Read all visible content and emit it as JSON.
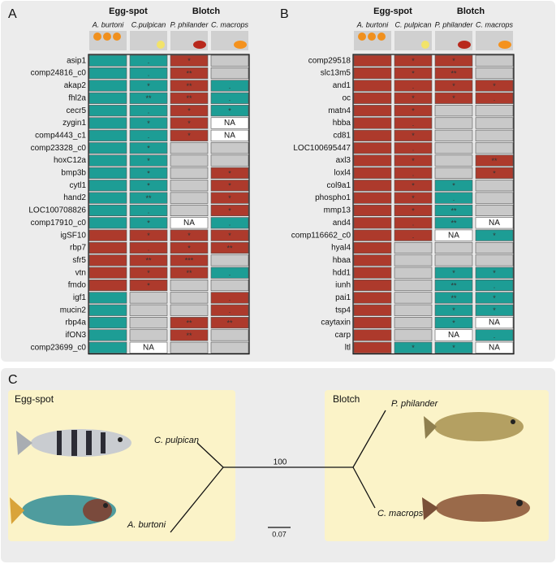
{
  "palette": {
    "r": "#ad3a2c",
    "t": "#1d9d95",
    "g": "#c9c9c9",
    "w": "#ffffff"
  },
  "panels": [
    {
      "label": "A",
      "groups": [
        "Egg-spot",
        "Blotch"
      ],
      "species": [
        "A. burtoni",
        "C.pulpican",
        "P. philander",
        "C. macrops"
      ],
      "rows": [
        {
          "gene": "asip1",
          "cells": [
            "t",
            [
              "t",
              "."
            ],
            [
              "r",
              "*"
            ],
            "g"
          ]
        },
        {
          "gene": "comp24816_c0",
          "cells": [
            "t",
            [
              "t",
              "."
            ],
            [
              "r",
              "**"
            ],
            "g"
          ]
        },
        {
          "gene": "akap2",
          "cells": [
            "t",
            [
              "t",
              "*"
            ],
            [
              "r",
              "**"
            ],
            [
              "t",
              "."
            ]
          ]
        },
        {
          "gene": "fhl2a",
          "cells": [
            "t",
            [
              "t",
              "**"
            ],
            [
              "r",
              "**"
            ],
            [
              "t",
              "."
            ]
          ]
        },
        {
          "gene": "cecr5",
          "cells": [
            "t",
            [
              "t",
              "."
            ],
            [
              "r",
              "*"
            ],
            [
              "t",
              "*"
            ]
          ]
        },
        {
          "gene": "zygin1",
          "cells": [
            "t",
            [
              "t",
              "*"
            ],
            [
              "r",
              "*"
            ],
            [
              "w",
              "NA"
            ]
          ]
        },
        {
          "gene": "comp4443_c1",
          "cells": [
            "t",
            [
              "t",
              "."
            ],
            [
              "r",
              "*"
            ],
            [
              "w",
              "NA"
            ]
          ]
        },
        {
          "gene": "comp23328_c0",
          "cells": [
            "t",
            [
              "t",
              "*"
            ],
            "g",
            "g"
          ]
        },
        {
          "gene": "hoxC12a",
          "cells": [
            "t",
            [
              "t",
              "*"
            ],
            "g",
            "g"
          ]
        },
        {
          "gene": "bmp3b",
          "cells": [
            "t",
            [
              "t",
              "*"
            ],
            "g",
            [
              "r",
              "*"
            ]
          ]
        },
        {
          "gene": "cytl1",
          "cells": [
            "t",
            [
              "t",
              "*"
            ],
            "g",
            [
              "r",
              "*"
            ]
          ]
        },
        {
          "gene": "hand2",
          "cells": [
            "t",
            [
              "t",
              "**"
            ],
            "g",
            [
              "r",
              "*"
            ]
          ]
        },
        {
          "gene": "LOC100708826",
          "cells": [
            "t",
            [
              "t",
              "."
            ],
            "g",
            [
              "r",
              "*"
            ]
          ]
        },
        {
          "gene": "comp17910_c0",
          "cells": [
            "t",
            [
              "t",
              "*"
            ],
            [
              "w",
              "NA"
            ],
            [
              "t",
              "."
            ]
          ]
        },
        {
          "gene": "igSF10",
          "cells": [
            "r",
            [
              "r",
              "*"
            ],
            [
              "r",
              "*"
            ],
            [
              "r",
              "*"
            ]
          ]
        },
        {
          "gene": "rbp7",
          "cells": [
            "r",
            [
              "r",
              "."
            ],
            [
              "r",
              "*"
            ],
            [
              "r",
              "**"
            ]
          ]
        },
        {
          "gene": "sfr5",
          "cells": [
            "r",
            [
              "r",
              "**"
            ],
            [
              "r",
              "***"
            ],
            "g"
          ]
        },
        {
          "gene": "vtn",
          "cells": [
            "r",
            [
              "r",
              "*"
            ],
            [
              "r",
              "**"
            ],
            [
              "t",
              "."
            ]
          ]
        },
        {
          "gene": "fmdo",
          "cells": [
            "r",
            [
              "r",
              "*"
            ],
            "g",
            "g"
          ]
        },
        {
          "gene": "igf1",
          "cells": [
            "t",
            "g",
            "g",
            [
              "r",
              "."
            ]
          ]
        },
        {
          "gene": "mucin2",
          "cells": [
            "t",
            "g",
            "g",
            [
              "r",
              "."
            ]
          ]
        },
        {
          "gene": "rbp4a",
          "cells": [
            "t",
            "g",
            [
              "r",
              "**"
            ],
            [
              "r",
              "**"
            ]
          ]
        },
        {
          "gene": "ifON3",
          "cells": [
            "t",
            "g",
            [
              "r",
              "**"
            ],
            "g"
          ]
        },
        {
          "gene": "comp23699_c0",
          "cells": [
            "t",
            [
              "w",
              "NA"
            ],
            "g",
            "g"
          ]
        }
      ]
    },
    {
      "label": "B",
      "groups": [
        "Egg-spot",
        "Blotch"
      ],
      "species": [
        "A. burtoni",
        "C. pulpican",
        "P. philander",
        "C. macrops"
      ],
      "rows": [
        {
          "gene": "comp29518",
          "cells": [
            "r",
            [
              "r",
              "*"
            ],
            [
              "r",
              "*"
            ],
            "g"
          ]
        },
        {
          "gene": "slc13m5",
          "cells": [
            "r",
            [
              "r",
              "*"
            ],
            [
              "r",
              "**"
            ],
            "g"
          ]
        },
        {
          "gene": "and1",
          "cells": [
            "r",
            [
              "r",
              "."
            ],
            [
              "r",
              "*"
            ],
            [
              "r",
              "*"
            ]
          ]
        },
        {
          "gene": "oc",
          "cells": [
            "r",
            [
              "r",
              "*"
            ],
            [
              "r",
              "*"
            ],
            [
              "r",
              "."
            ]
          ]
        },
        {
          "gene": "matn4",
          "cells": [
            "r",
            [
              "r",
              "*"
            ],
            "g",
            "g"
          ]
        },
        {
          "gene": "hbba",
          "cells": [
            "r",
            [
              "r",
              "."
            ],
            "g",
            "g"
          ]
        },
        {
          "gene": "cd81",
          "cells": [
            "r",
            [
              "r",
              "*"
            ],
            "g",
            "g"
          ]
        },
        {
          "gene": "LOC100695447",
          "cells": [
            "r",
            [
              "r",
              "."
            ],
            "g",
            "g"
          ]
        },
        {
          "gene": "axl3",
          "cells": [
            "r",
            [
              "r",
              "*"
            ],
            "g",
            [
              "r",
              "**"
            ]
          ]
        },
        {
          "gene": "loxl4",
          "cells": [
            "r",
            [
              "r",
              "."
            ],
            "g",
            [
              "r",
              "*"
            ]
          ]
        },
        {
          "gene": "col9a1",
          "cells": [
            "r",
            [
              "r",
              "*"
            ],
            [
              "t",
              "*"
            ],
            "g"
          ]
        },
        {
          "gene": "phospho1",
          "cells": [
            "r",
            [
              "r",
              "*"
            ],
            [
              "t",
              "."
            ],
            "g"
          ]
        },
        {
          "gene": "mmp13",
          "cells": [
            "r",
            [
              "r",
              "*"
            ],
            [
              "t",
              "**"
            ],
            "g"
          ]
        },
        {
          "gene": "and4",
          "cells": [
            "r",
            [
              "r",
              "."
            ],
            [
              "t",
              "**"
            ],
            [
              "w",
              "NA"
            ]
          ]
        },
        {
          "gene": "comp116662_c0",
          "cells": [
            "r",
            [
              "r",
              "."
            ],
            [
              "w",
              "NA"
            ],
            [
              "t",
              "*"
            ]
          ]
        },
        {
          "gene": "hyal4",
          "cells": [
            "r",
            "g",
            "g",
            "g"
          ]
        },
        {
          "gene": "hbaa",
          "cells": [
            "r",
            "g",
            "g",
            "g"
          ]
        },
        {
          "gene": "hdd1",
          "cells": [
            "r",
            "g",
            [
              "t",
              "*"
            ],
            [
              "t",
              "*"
            ]
          ]
        },
        {
          "gene": "iunh",
          "cells": [
            "r",
            "g",
            [
              "t",
              "**"
            ],
            [
              "t",
              "."
            ]
          ]
        },
        {
          "gene": "pai1",
          "cells": [
            "r",
            "g",
            [
              "t",
              "**"
            ],
            [
              "t",
              "*"
            ]
          ]
        },
        {
          "gene": "tsp4",
          "cells": [
            "r",
            "g",
            [
              "t",
              "*"
            ],
            [
              "t",
              "*"
            ]
          ]
        },
        {
          "gene": "caytaxin",
          "cells": [
            "r",
            "g",
            [
              "t",
              "*"
            ],
            [
              "w",
              "NA"
            ]
          ]
        },
        {
          "gene": "carp",
          "cells": [
            "r",
            "g",
            [
              "w",
              "NA"
            ],
            [
              "t",
              "."
            ]
          ]
        },
        {
          "gene": "ltl",
          "cells": [
            "r",
            [
              "t",
              "*"
            ],
            [
              "t",
              "*"
            ],
            [
              "w",
              "NA"
            ]
          ]
        }
      ]
    }
  ],
  "tree": {
    "label": "C",
    "left_group": "Egg-spot",
    "right_group": "Blotch",
    "leaves": [
      "C. pulpican",
      "A. burtoni",
      "P. philander",
      "C. macrops"
    ],
    "bootstrap": "100",
    "scale": "0.07"
  }
}
